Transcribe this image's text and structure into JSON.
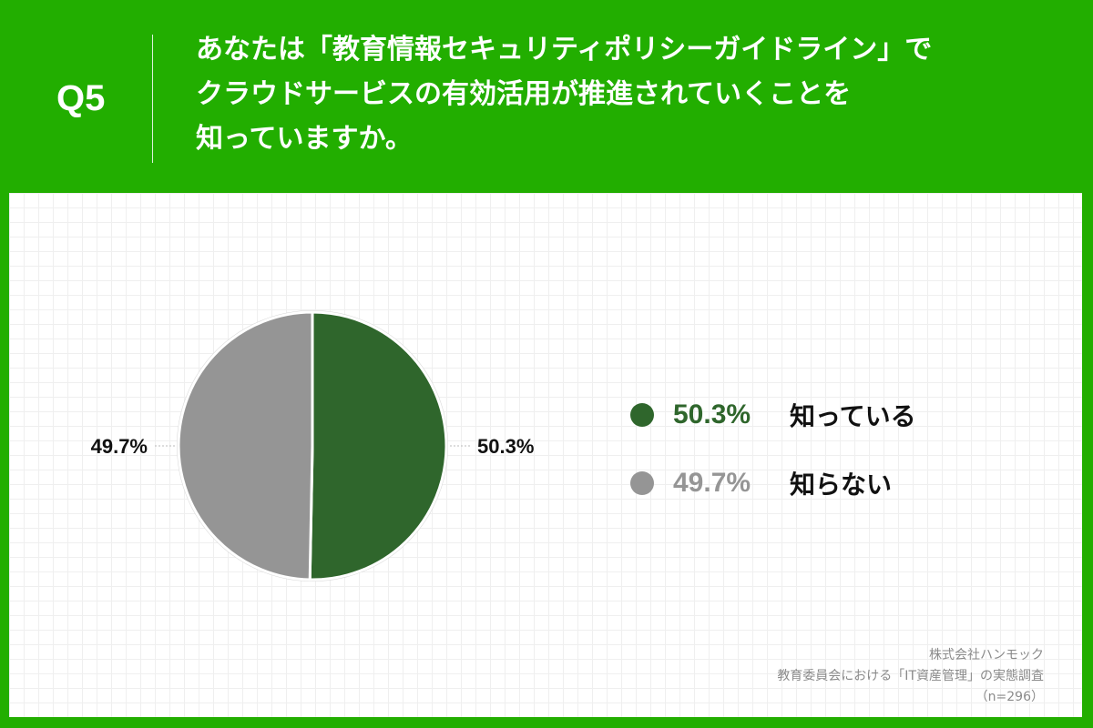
{
  "header": {
    "q_label": "Q5",
    "question_lines": [
      "あなたは「教育情報セキュリティポリシーガイドライン」で",
      "クラウドサービスの有効活用が推進されていくことを",
      "知っていますか。"
    ]
  },
  "colors": {
    "header_bg": "#22ae00",
    "series_known": "#2f662c",
    "series_unknown": "#959595"
  },
  "chart_data": {
    "type": "pie",
    "slices": [
      {
        "name": "知っている",
        "value": 50.3,
        "label": "50.3%",
        "color": "#2f662c"
      },
      {
        "name": "知らない",
        "value": 49.7,
        "label": "49.7%",
        "color": "#959595"
      }
    ]
  },
  "legend": [
    {
      "value_label": "50.3%",
      "name": "知っている",
      "color": "#2f662c"
    },
    {
      "value_label": "49.7%",
      "name": "知らない",
      "color": "#959595"
    }
  ],
  "footer": {
    "company": "株式会社ハンモック",
    "survey": "教育委員会における「IT資産管理」の実態調査",
    "sample": "（n=296）"
  }
}
